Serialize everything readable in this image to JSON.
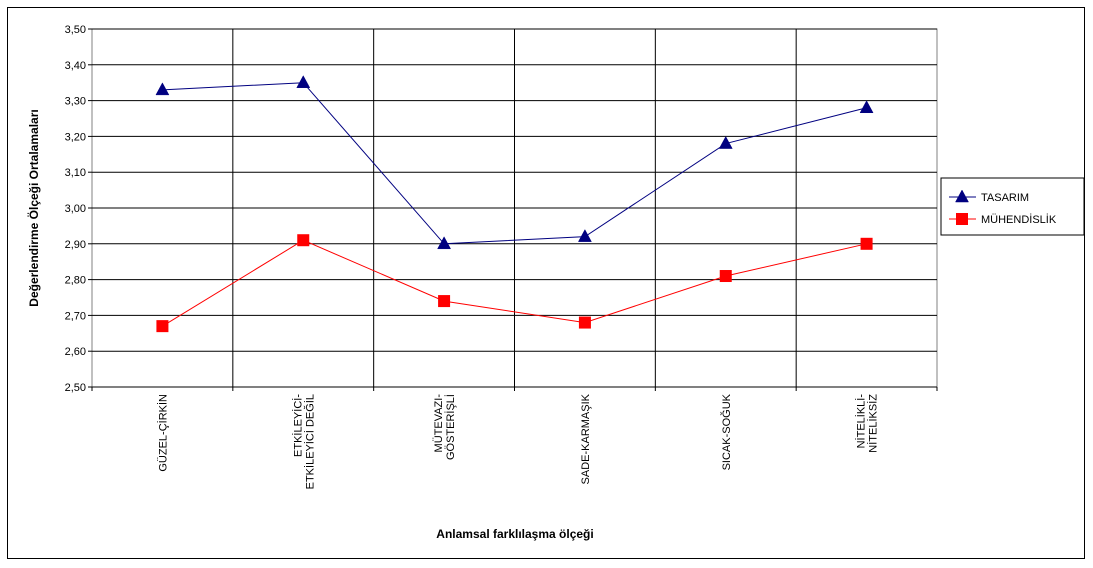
{
  "chart_data": {
    "type": "line",
    "xlabel": "Anlamsal farklılaşma ölçeği",
    "ylabel": "Değerlendirme Ölçeği Ortalamaları",
    "ylim": [
      2.5,
      3.5
    ],
    "ytick_labels": [
      "2,50",
      "2,60",
      "2,70",
      "2,80",
      "2,90",
      "3,00",
      "3,10",
      "3,20",
      "3,30",
      "3,40",
      "3,50"
    ],
    "categories": [
      [
        "GÜZEL-ÇİRKİN"
      ],
      [
        "ETKİLEYİCİ-",
        "ETKİLEYİCİ DEĞİL"
      ],
      [
        "MÜTEVAZI-",
        "GÖSTERİŞLİ"
      ],
      [
        "SADE-KARMAŞIK"
      ],
      [
        "SICAK-SOĞUK"
      ],
      [
        "NİTELİKLİ-",
        "NİTELİKSİZ"
      ]
    ],
    "grid": true,
    "legend_position": "right",
    "series": [
      {
        "name": "TASARIM",
        "color": "#000080",
        "marker": "triangle",
        "values": [
          3.33,
          3.35,
          2.9,
          2.92,
          3.18,
          3.28
        ]
      },
      {
        "name": "MÜHENDİSLİK",
        "color": "#FF0000",
        "marker": "square",
        "values": [
          2.67,
          2.91,
          2.74,
          2.68,
          2.81,
          2.9
        ]
      }
    ]
  }
}
